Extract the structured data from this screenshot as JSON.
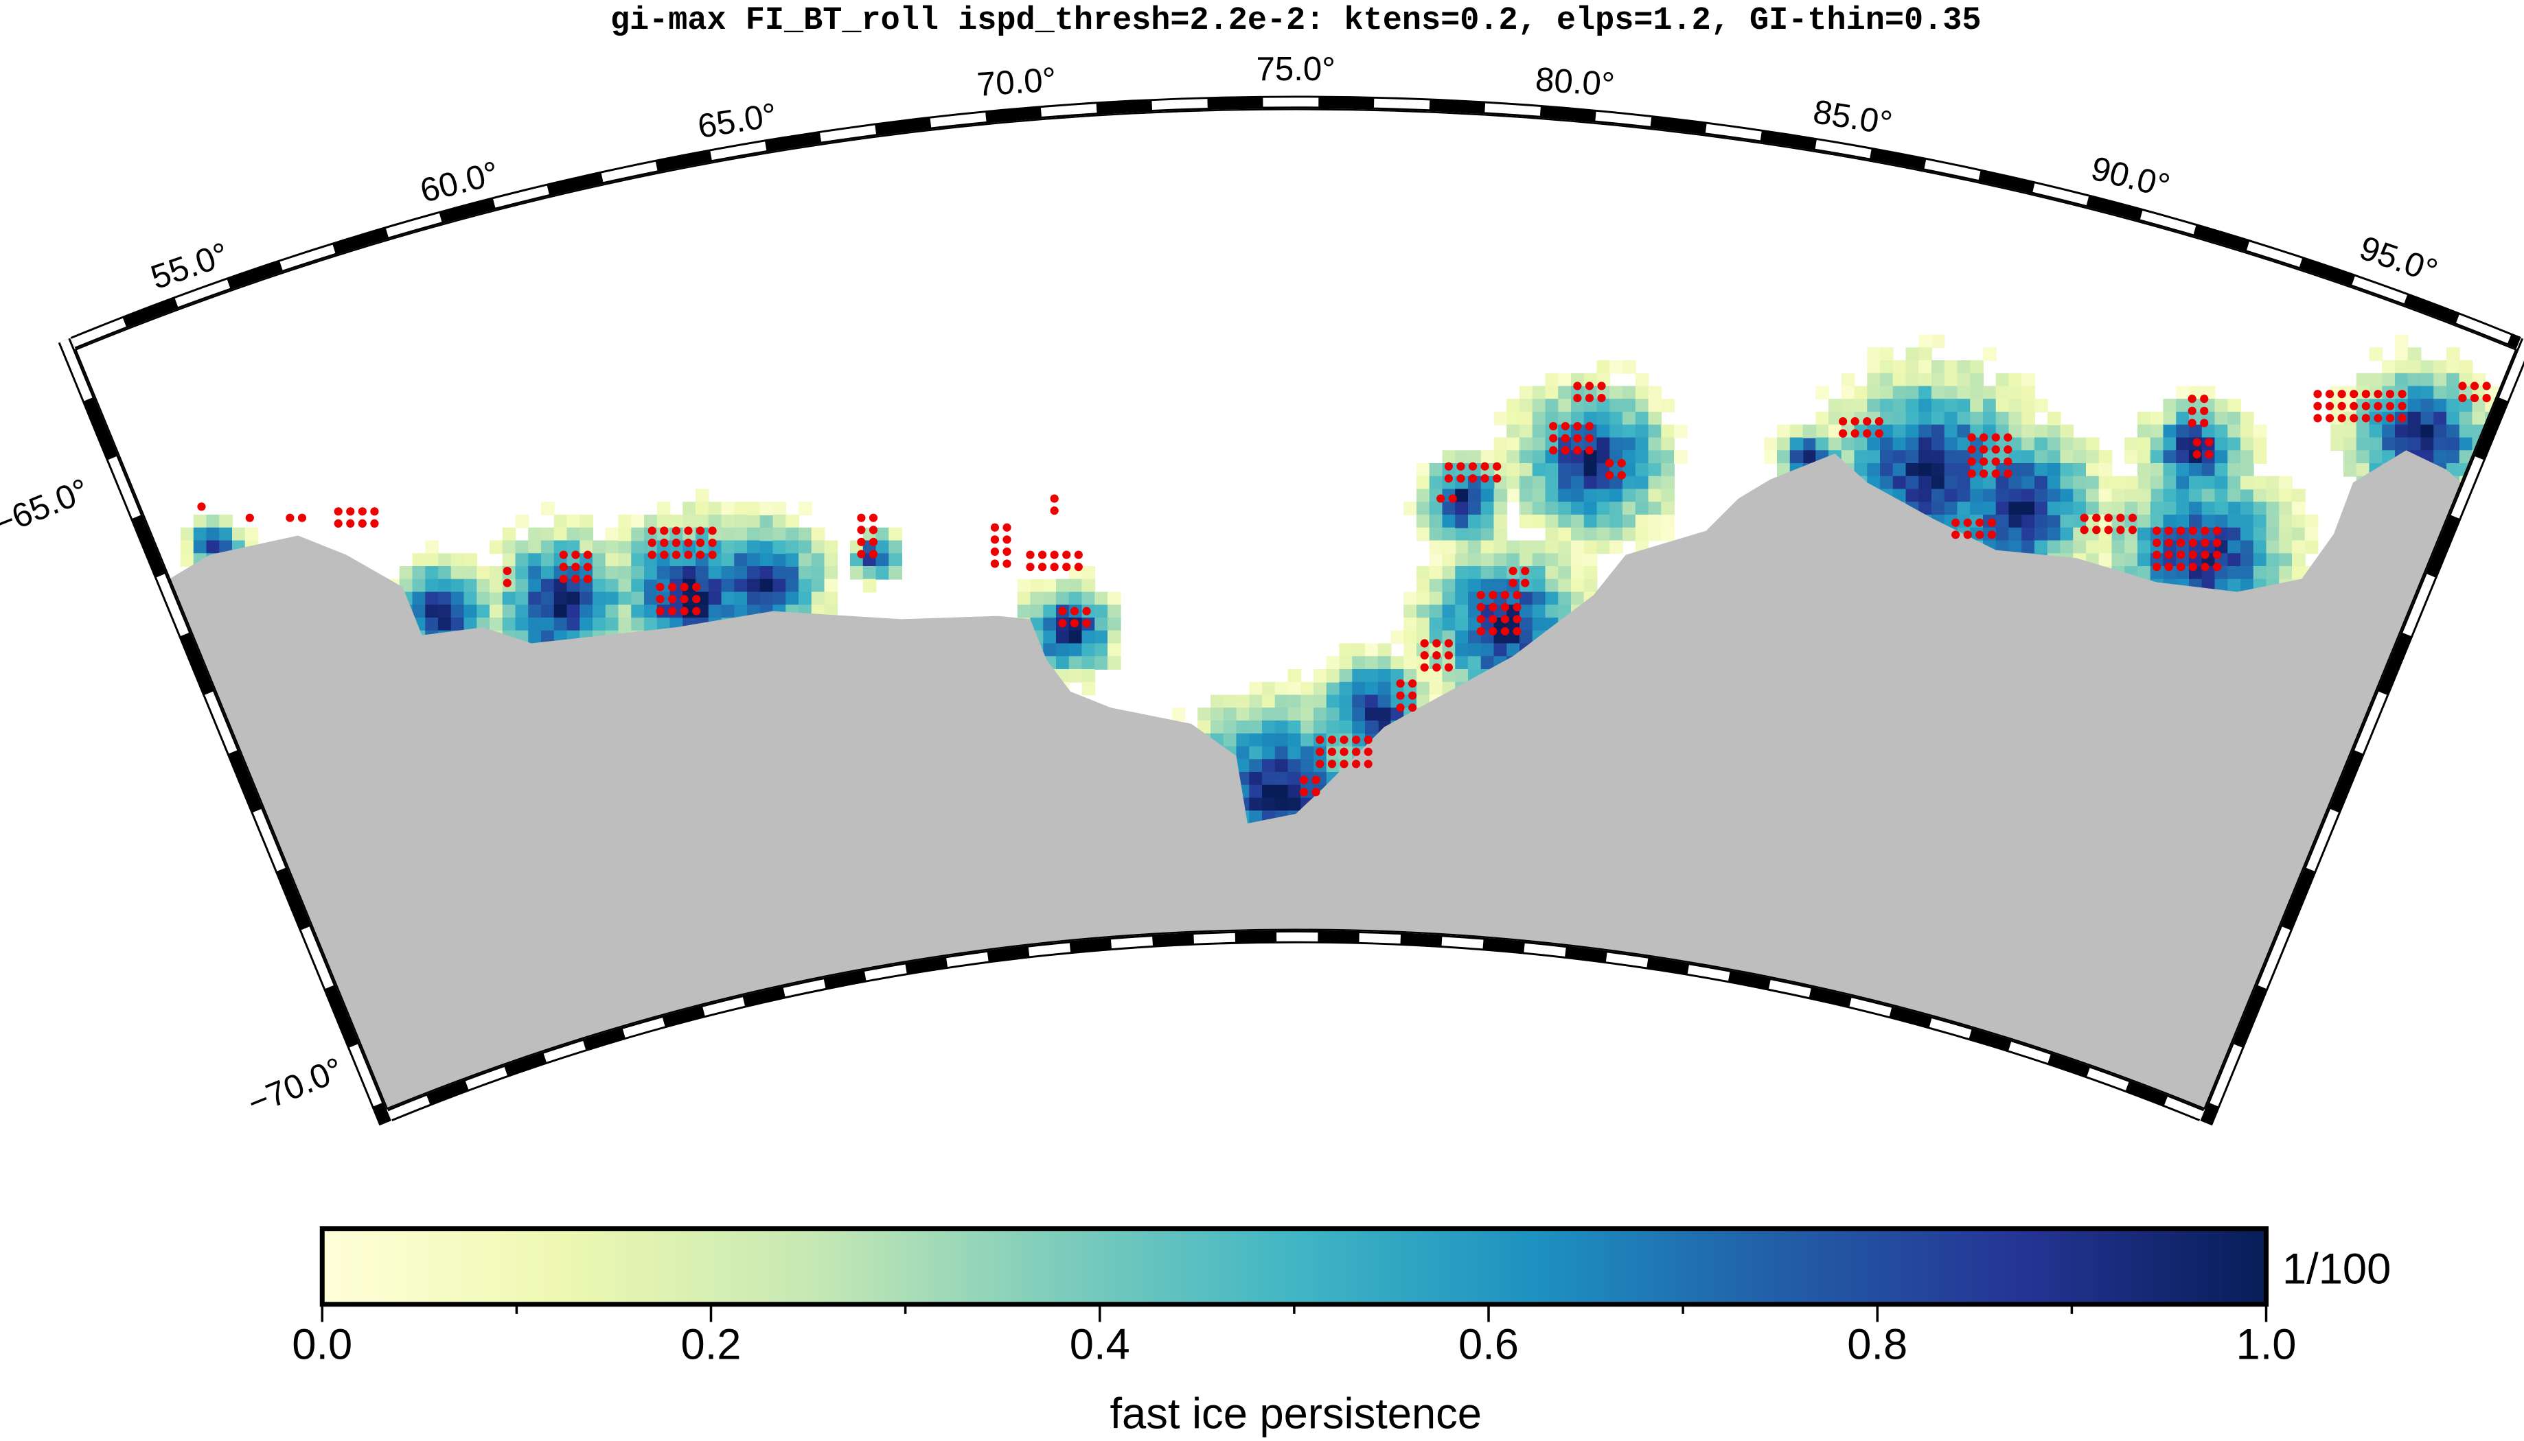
{
  "title": "gi-max FI_BT_roll ispd_thresh=2.2e-2: ktens=0.2, elps=1.2, GI-thin=0.35",
  "map": {
    "lon_labels": [
      "55.0°",
      "60.0°",
      "65.0°",
      "70.0°",
      "75.0°",
      "80.0°",
      "85.0°",
      "90.0°",
      "95.0°"
    ],
    "lat_labels": [
      "−65.0°",
      "−70.0°"
    ]
  },
  "colorbar": {
    "range": [
      0,
      1
    ],
    "ticks": [
      {
        "value": 0,
        "label": "0.0"
      },
      0.2,
      0.4,
      0.6,
      0.8,
      {
        "value": 1,
        "label": "1.0"
      }
    ],
    "unit": "1/100",
    "label": "fast ice persistence",
    "colormap": [
      "#ffffd9",
      "#edf8b1",
      "#c7e9b4",
      "#7fcdbb",
      "#41b6c4",
      "#1d91c0",
      "#225ea8",
      "#253494",
      "#081d58"
    ]
  }
}
